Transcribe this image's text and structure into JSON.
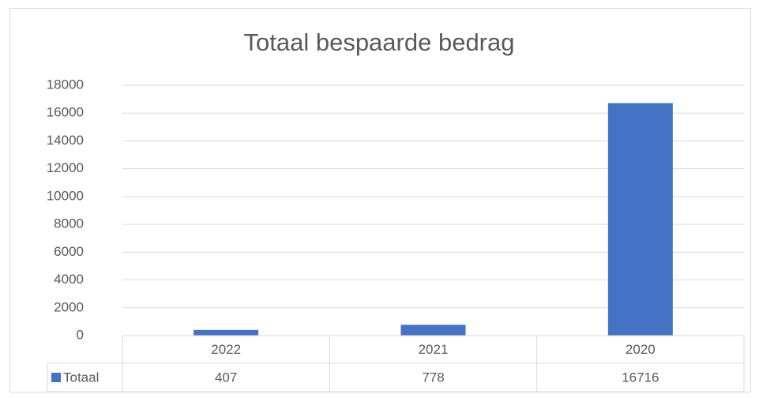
{
  "chart_data": {
    "type": "bar",
    "title": "Totaal bespaarde bedrag",
    "categories": [
      "2022",
      "2021",
      "2020"
    ],
    "series": [
      {
        "name": "Totaal",
        "color": "#4472c4",
        "values": [
          407,
          778,
          16716
        ]
      }
    ],
    "ylim": [
      0,
      18000
    ],
    "yticks": [
      0,
      2000,
      4000,
      6000,
      8000,
      10000,
      12000,
      14000,
      16000,
      18000
    ],
    "grid": true,
    "data_table": true
  }
}
